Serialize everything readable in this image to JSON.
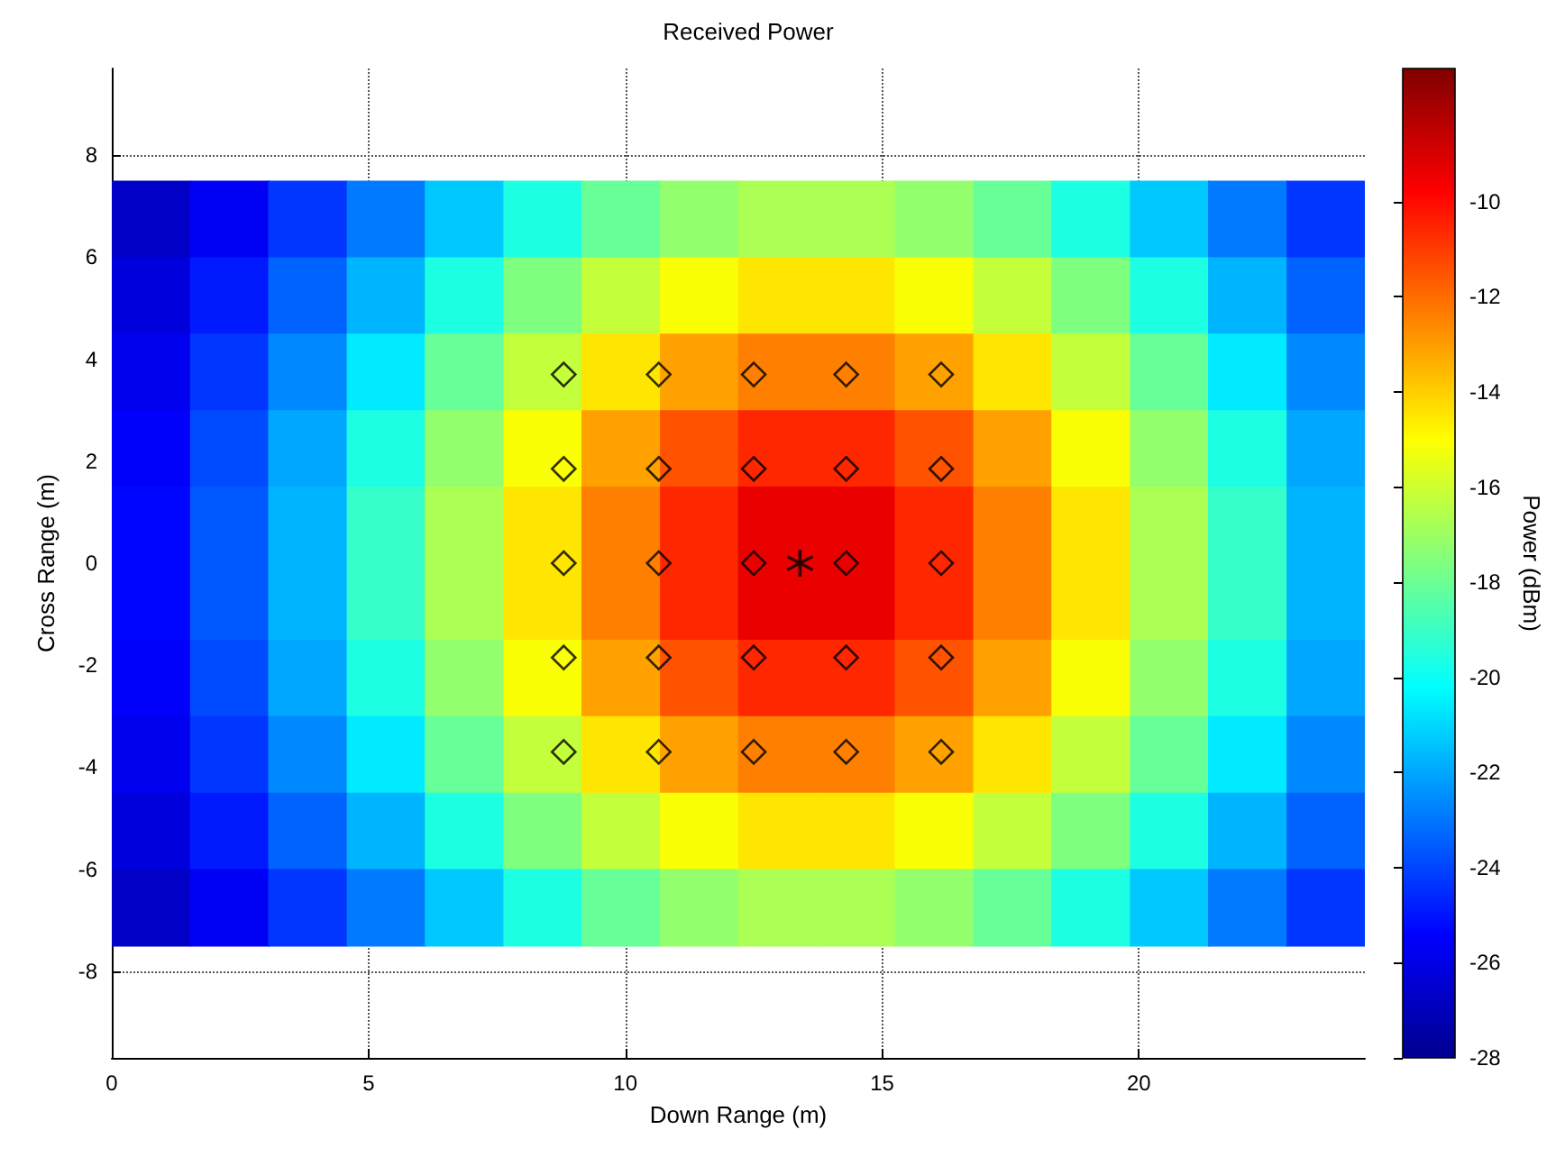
{
  "chart_data": {
    "type": "heatmap",
    "title": "Received Power",
    "xlabel": "Down Range (m)",
    "ylabel": "Cross Range (m)",
    "clabel": "Power (dBm)",
    "x": [
      0.76,
      2.29,
      3.81,
      5.34,
      6.86,
      8.39,
      9.91,
      11.44,
      12.96,
      14.49,
      16.01,
      17.54,
      19.06,
      20.59,
      22.11,
      23.64
    ],
    "y": [
      6.75,
      5.25,
      3.75,
      2.25,
      0.75,
      -0.75,
      -2.25,
      -3.75,
      -5.25,
      -6.75
    ],
    "cells": [
      [
        -26.7,
        -25.6,
        -24.3,
        -22.9,
        -21.3,
        -19.6,
        -18.1,
        -17.2,
        -16.7,
        -16.7,
        -17.2,
        -18.1,
        -19.6,
        -21.3,
        -22.9,
        -24.3
      ],
      [
        -26.2,
        -24.9,
        -23.4,
        -21.7,
        -19.6,
        -17.6,
        -16.2,
        -15.1,
        -14.5,
        -14.5,
        -15.1,
        -16.2,
        -17.6,
        -19.6,
        -21.7,
        -23.4
      ],
      [
        -25.8,
        -24.3,
        -22.6,
        -20.6,
        -18.1,
        -16.2,
        -14.5,
        -13.1,
        -12.4,
        -12.4,
        -13.1,
        -14.5,
        -16.2,
        -18.1,
        -20.6,
        -22.6
      ],
      [
        -25.5,
        -23.9,
        -22.0,
        -19.6,
        -17.2,
        -15.1,
        -13.1,
        -11.5,
        -10.6,
        -10.6,
        -11.5,
        -13.1,
        -15.1,
        -17.2,
        -19.6,
        -22.0
      ],
      [
        -25.3,
        -23.6,
        -21.7,
        -19.1,
        -16.7,
        -14.5,
        -12.4,
        -10.6,
        -9.4,
        -9.4,
        -10.6,
        -12.4,
        -14.5,
        -16.7,
        -19.1,
        -21.7
      ],
      [
        -25.3,
        -23.6,
        -21.7,
        -19.1,
        -16.7,
        -14.5,
        -12.4,
        -10.6,
        -9.4,
        -9.4,
        -10.6,
        -12.4,
        -14.5,
        -16.7,
        -19.1,
        -21.7
      ],
      [
        -25.5,
        -23.9,
        -22.0,
        -19.6,
        -17.2,
        -15.1,
        -13.1,
        -11.5,
        -10.6,
        -10.6,
        -11.5,
        -13.1,
        -15.1,
        -17.2,
        -19.6,
        -22.0
      ],
      [
        -25.8,
        -24.3,
        -22.6,
        -20.6,
        -18.1,
        -16.2,
        -14.5,
        -13.1,
        -12.4,
        -12.4,
        -13.1,
        -14.5,
        -16.2,
        -18.1,
        -20.6,
        -22.6
      ],
      [
        -26.2,
        -24.9,
        -23.4,
        -21.7,
        -19.6,
        -17.6,
        -16.2,
        -15.1,
        -14.5,
        -14.5,
        -15.1,
        -16.2,
        -17.6,
        -19.6,
        -21.7,
        -23.4
      ],
      [
        -26.7,
        -25.6,
        -24.3,
        -22.9,
        -21.3,
        -19.6,
        -18.1,
        -17.2,
        -16.7,
        -16.7,
        -17.2,
        -18.1,
        -19.6,
        -21.3,
        -22.9,
        -24.3
      ]
    ],
    "clim": [
      -28,
      -7.2
    ],
    "cticks": [
      -28,
      -26,
      -24,
      -22,
      -20,
      -18,
      -16,
      -14,
      -12,
      -10
    ],
    "xlim": [
      0,
      24.4
    ],
    "xticks": [
      0,
      5,
      10,
      15,
      20
    ],
    "ylim": [
      -9.7,
      9.7
    ],
    "yticks": [
      -8,
      -6,
      -4,
      -2,
      0,
      2,
      4,
      6,
      8
    ],
    "grid": true,
    "series": [
      {
        "type": "scatter",
        "marker": "diamond",
        "color": "#000000",
        "x": [
          8.8,
          10.65,
          12.5,
          14.3,
          16.15,
          8.8,
          10.65,
          12.5,
          14.3,
          16.15,
          8.8,
          10.65,
          12.5,
          14.3,
          16.15,
          8.8,
          10.65,
          12.5,
          14.3,
          16.15,
          8.8,
          10.65,
          12.5,
          14.3,
          16.15
        ],
        "values": [
          3.7,
          3.7,
          3.7,
          3.7,
          3.7,
          1.85,
          1.85,
          1.85,
          1.85,
          1.85,
          0,
          0,
          0,
          0,
          0,
          -1.85,
          -1.85,
          -1.85,
          -1.85,
          -1.85,
          -3.7,
          -3.7,
          -3.7,
          -3.7,
          -3.7
        ]
      },
      {
        "type": "scatter",
        "marker": "star",
        "color": "#000000",
        "x": [
          13.4
        ],
        "values": [
          0
        ]
      }
    ]
  }
}
